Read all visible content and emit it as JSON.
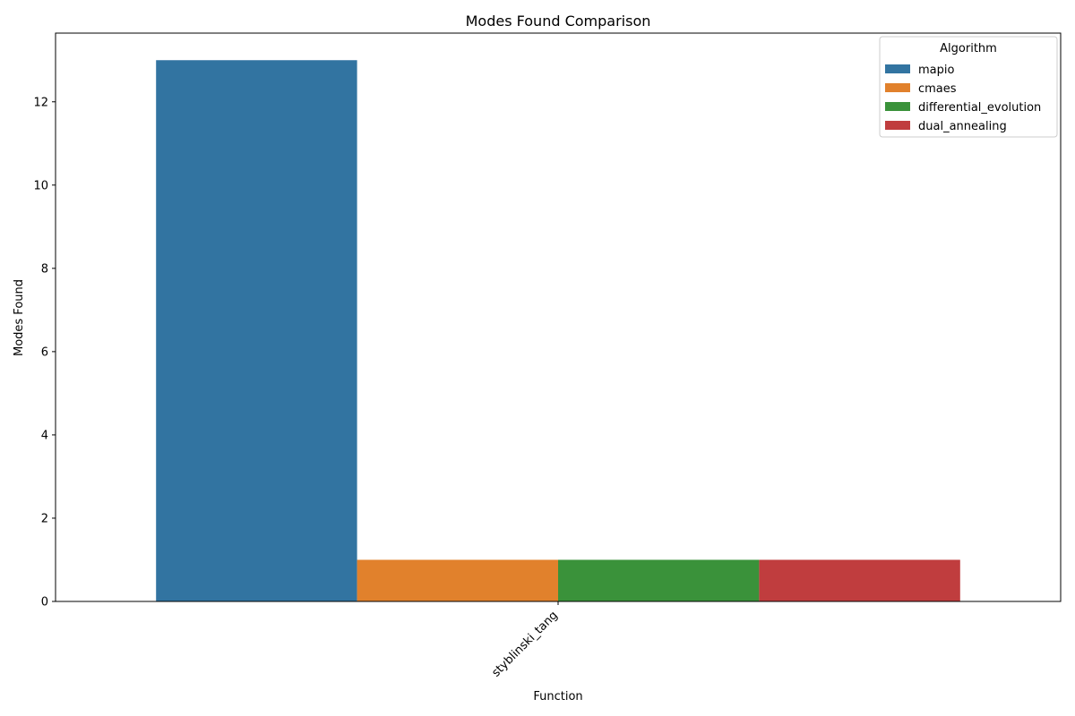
{
  "chart_data": {
    "type": "bar",
    "title": "Modes Found Comparison",
    "xlabel": "Function",
    "ylabel": "Modes Found",
    "categories": [
      "styblinski_tang"
    ],
    "series": [
      {
        "name": "mapio",
        "values": [
          13
        ],
        "color": "#3274a1"
      },
      {
        "name": "cmaes",
        "values": [
          1
        ],
        "color": "#e1812c"
      },
      {
        "name": "differential_evolution",
        "values": [
          1
        ],
        "color": "#3a923a"
      },
      {
        "name": "dual_annealing",
        "values": [
          1
        ],
        "color": "#c03d3e"
      }
    ],
    "ylim": [
      0,
      13.65
    ],
    "yticks": [
      0,
      2,
      4,
      6,
      8,
      10,
      12
    ],
    "grid": false,
    "legend": {
      "title": "Algorithm",
      "placement": "top-right"
    }
  }
}
